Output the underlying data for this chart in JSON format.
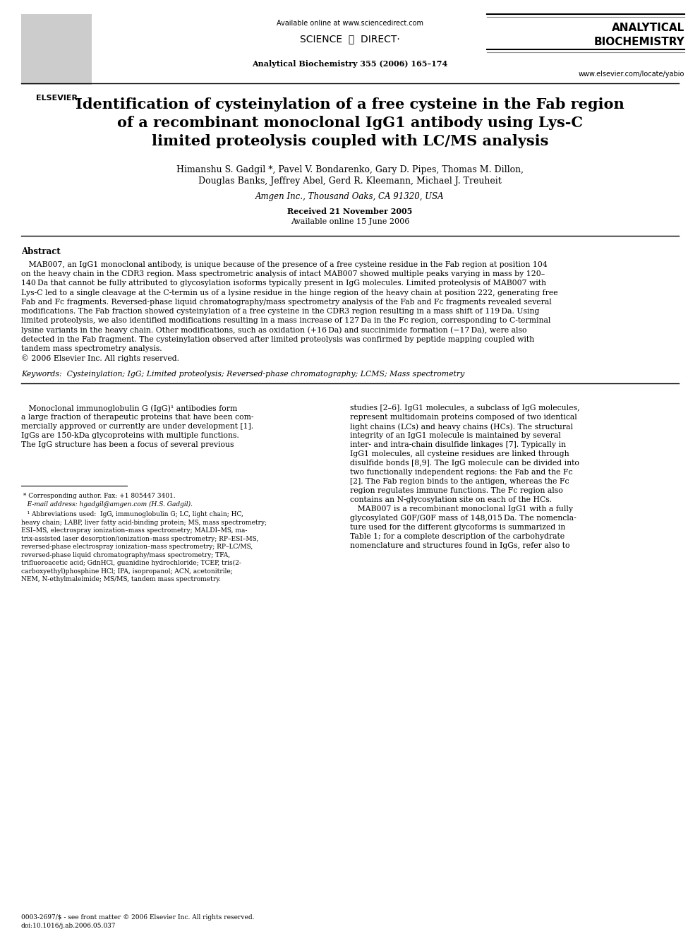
{
  "bg_color": "#ffffff",
  "page_width": 9.92,
  "page_height": 13.23,
  "dpi": 100,
  "header": {
    "available_online": "Available online at www.sciencedirect.com",
    "sciencedirect_left": "SCIENCE",
    "sciencedirect_right": "DIRECT·",
    "journal_line": "Analytical Biochemistry 355 (2006) 165–174",
    "journal_name_line1": "ANALYTICAL",
    "journal_name_line2": "BIOCHEMISTRY",
    "website": "www.elsevier.com/locate/yabio"
  },
  "title_lines": [
    "Identification of cysteinylation of a free cysteine in the Fab region",
    "of a recombinant monoclonal IgG1 antibody using Lys-C",
    "limited proteolysis coupled with LC/MS analysis"
  ],
  "authors_line1": "Himanshu S. Gadgil *, Pavel V. Bondarenko, Gary D. Pipes, Thomas M. Dillon,",
  "authors_line2": "Douglas Banks, Jeffrey Abel, Gerd R. Kleemann, Michael J. Treuheit",
  "affiliation": "Amgen Inc., Thousand Oaks, CA 91320, USA",
  "received": "Received 21 November 2005",
  "available_online_article": "Available online 15 June 2006",
  "abstract_title": "Abstract",
  "abstract_lines": [
    "   MAB007, an IgG1 monoclonal antibody, is unique because of the presence of a free cysteine residue in the Fab region at position 104",
    "on the heavy chain in the CDR3 region. Mass spectrometric analysis of intact MAB007 showed multiple peaks varying in mass by 120–",
    "140 Da that cannot be fully attributed to glycosylation isoforms typically present in IgG molecules. Limited proteolysis of MAB007 with",
    "Lys-C led to a single cleavage at the C-termin us of a lysine residue in the hinge region of the heavy chain at position 222, generating free",
    "Fab and Fc fragments. Reversed-phase liquid chromatography/mass spectrometry analysis of the Fab and Fc fragments revealed several",
    "modifications. The Fab fraction showed cysteinylation of a free cysteine in the CDR3 region resulting in a mass shift of 119 Da. Using",
    "limited proteolysis, we also identified modifications resulting in a mass increase of 127 Da in the Fc region, corresponding to C-terminal",
    "lysine variants in the heavy chain. Other modifications, such as oxidation (+16 Da) and succinimide formation (−17 Da), were also",
    "detected in the Fab fragment. The cysteinylation observed after limited proteolysis was confirmed by peptide mapping coupled with",
    "tandem mass spectrometry analysis.",
    "© 2006 Elsevier Inc. All rights reserved."
  ],
  "keywords": "Keywords:  Cysteinylation; IgG; Limited proteolysis; Reversed-phase chromatography; LCMS; Mass spectrometry",
  "body_col1_lines": [
    "   Monoclonal immunoglobulin G (IgG)¹ antibodies form",
    "a large fraction of therapeutic proteins that have been com-",
    "mercially approved or currently are under development [1].",
    "IgGs are 150-kDa glycoproteins with multiple functions.",
    "The IgG structure has been a focus of several previous"
  ],
  "body_col2_lines": [
    "studies [2–6]. IgG1 molecules, a subclass of IgG molecules,",
    "represent multidomain proteins composed of two identical",
    "light chains (LCs) and heavy chains (HCs). The structural",
    "integrity of an IgG1 molecule is maintained by several",
    "inter- and intra-chain disulfide linkages [7]. Typically in",
    "IgG1 molecules, all cysteine residues are linked through",
    "disulfide bonds [8,9]. The IgG molecule can be divided into",
    "two functionally independent regions: the Fab and the Fc",
    "[2]. The Fab region binds to the antigen, whereas the Fc",
    "region regulates immune functions. The Fc region also",
    "contains an N-glycosylation site on each of the HCs.",
    "   MAB007 is a recombinant monoclonal IgG1 with a fully",
    "glycosylated G0F/G0F mass of 148,015 Da. The nomencla-",
    "ture used for the different glycoforms is summarized in",
    "Table 1; for a complete description of the carbohydrate",
    "nomenclature and structures found in IgGs, refer also to"
  ],
  "footnote_star": " * Corresponding author. Fax: +1 805447 3401.",
  "footnote_email": "   E-mail address: hgadgil@amgen.com (H.S. Gadgil).",
  "footnote_1_label": "   ¹ Abbreviations used:",
  "footnote_1_lines": [
    "   ¹ Abbreviations used:  IgG, immunoglobulin G; LC, light chain; HC,",
    "heavy chain; LABP, liver fatty acid-binding protein; MS, mass spectrometry;",
    "ESI–MS, electrospray ionization–mass spectrometry; MALDI–MS, ma-",
    "trix-assisted laser desorption/ionization–mass spectrometry; RP–ESI–MS,",
    "reversed-phase electrospray ionization–mass spectrometry; RP–LC/MS,",
    "reversed-phase liquid chromatography/mass spectrometry; TFA,",
    "trifluoroacetic acid; GdnHCl, guanidine hydrochloride; TCEP, tris(2-",
    "carboxyethyl)phosphine HCl; IPA, isopropanol; ACN, acetonitrile;",
    "NEM, N-ethylmaleimide; MS/MS, tandem mass spectrometry."
  ],
  "footer_line1": "0003-2697/$ - see front matter © 2006 Elsevier Inc. All rights reserved.",
  "footer_line2": "doi:10.1016/j.ab.2006.05.037"
}
